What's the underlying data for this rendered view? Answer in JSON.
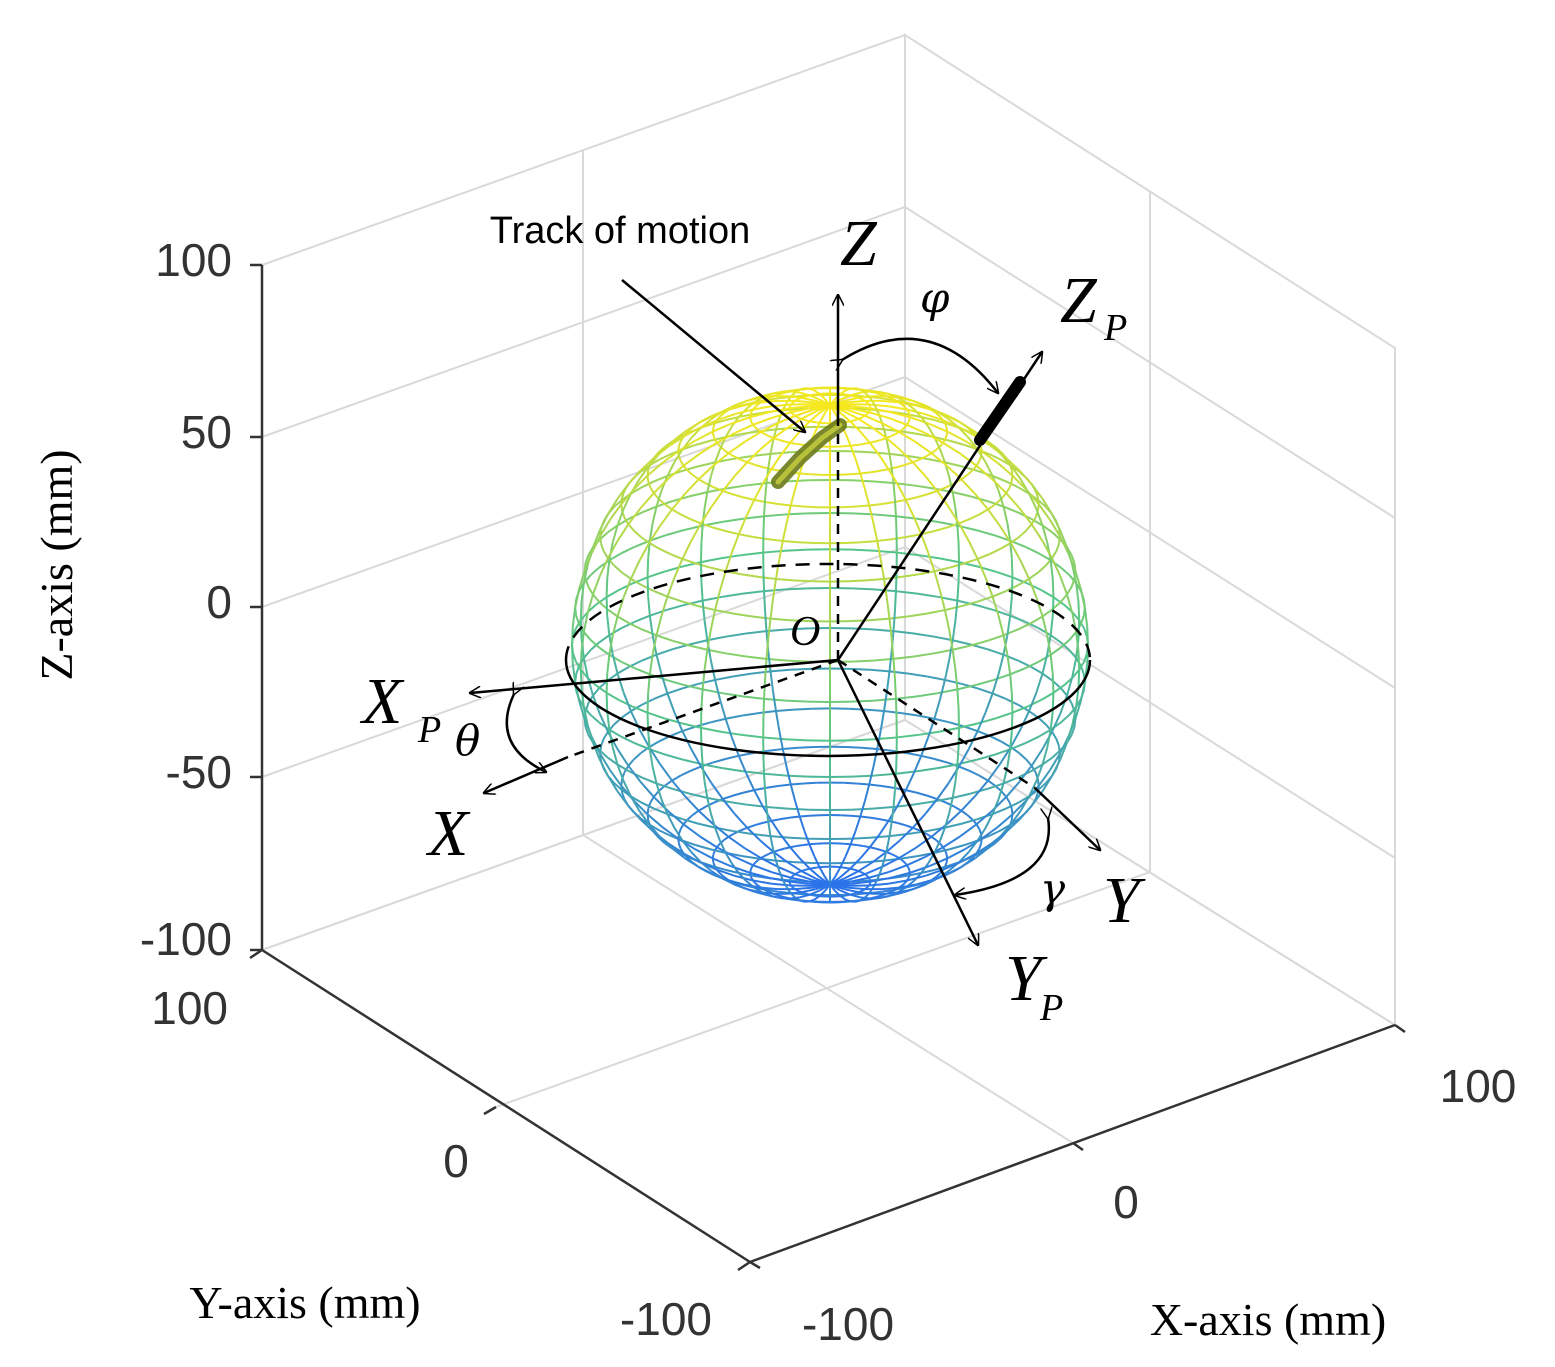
{
  "figure": {
    "axis_labels": {
      "z": "Z-axis (mm)",
      "y": "Y-axis (mm)",
      "x": "X-axis (mm)"
    },
    "z_ticks": [
      "100",
      "50",
      "0",
      "-50",
      "-100"
    ],
    "y_ticks": [
      "100",
      "0",
      "-100"
    ],
    "x_ticks": [
      "-100",
      "0",
      "100"
    ],
    "annotation": "Track of motion",
    "labels": {
      "Z": "Z",
      "Zp": "Z",
      "Zp_sub": "P",
      "X": "X",
      "Xp": "X",
      "Xp_sub": "P",
      "Y": "Y",
      "Yp": "Y",
      "Yp_sub": "P",
      "origin": "O",
      "phi": "φ",
      "theta": "θ",
      "gamma": "γ"
    },
    "colors": {
      "sphere_top": "#f5e81f",
      "sphere_mid": "#55c48a",
      "sphere_bottom": "#2a73e8",
      "track": "#6b7a1a",
      "grid": "#d9d9d9",
      "axis": "#333333"
    }
  }
}
